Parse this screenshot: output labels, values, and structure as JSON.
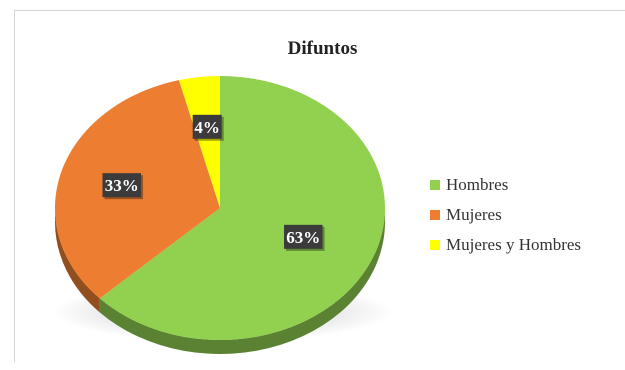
{
  "chart_data": {
    "type": "pie",
    "title": "Difuntos",
    "categories": [
      "Hombres",
      "Mujeres",
      "Mujeres y Hombres"
    ],
    "values": [
      63,
      33,
      4
    ],
    "labels": [
      "63%",
      "33%",
      "4%"
    ],
    "colors": [
      "#92d050",
      "#ed7d31",
      "#ffff00"
    ],
    "legend_position": "right",
    "style": "3d"
  }
}
